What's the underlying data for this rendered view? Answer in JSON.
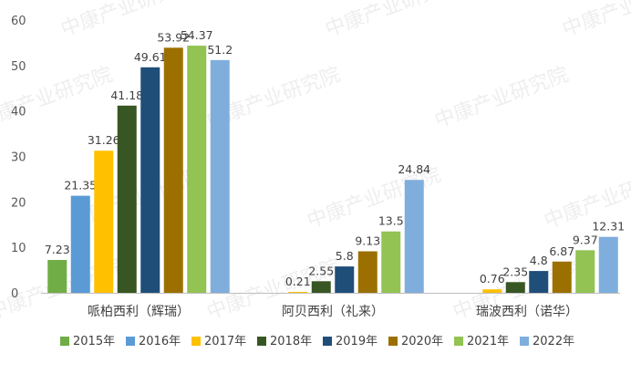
{
  "chart_data": {
    "type": "bar",
    "title": "",
    "xlabel": "",
    "ylabel": "",
    "ylim": [
      0,
      60
    ],
    "yticks": [
      0,
      10,
      20,
      30,
      40,
      50,
      60
    ],
    "grid": false,
    "legend_position": "bottom",
    "categories": [
      "哌柏西利（辉瑞）",
      "阿贝西利（礼来）",
      "瑞波西利（诺华）"
    ],
    "series": [
      {
        "name": "2015年",
        "color": "#70AD47",
        "values": [
          7.23,
          null,
          null
        ]
      },
      {
        "name": "2016年",
        "color": "#5B9BD5",
        "values": [
          21.35,
          null,
          null
        ]
      },
      {
        "name": "2017年",
        "color": "#FFC000",
        "values": [
          31.26,
          0.21,
          0.76
        ]
      },
      {
        "name": "2018年",
        "color": "#375623",
        "values": [
          41.18,
          2.55,
          2.35
        ]
      },
      {
        "name": "2019年",
        "color": "#1F4E79",
        "values": [
          49.61,
          5.8,
          4.8
        ]
      },
      {
        "name": "2020年",
        "color": "#9C7000",
        "values": [
          53.92,
          9.13,
          6.87
        ]
      },
      {
        "name": "2021年",
        "color": "#92C353",
        "values": [
          54.37,
          13.5,
          9.37
        ]
      },
      {
        "name": "2022年",
        "color": "#7FAEDD",
        "values": [
          51.2,
          24.84,
          12.31
        ]
      }
    ]
  },
  "watermark": {
    "text": "中康产业研究院"
  }
}
